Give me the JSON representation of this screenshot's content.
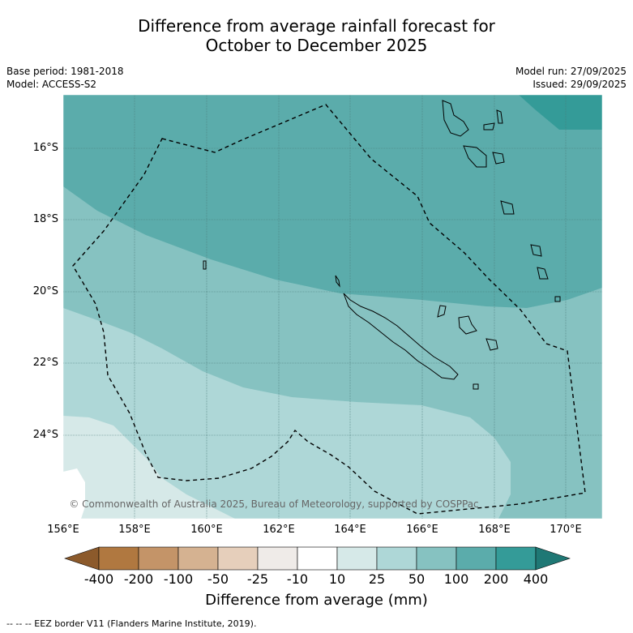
{
  "title_line1": "Difference from average rainfall forecast for",
  "title_line2": "October to December 2025",
  "base_period": "Base period: 1981-2018",
  "model": "Model: ACCESS-S2",
  "model_run": "Model run: 27/09/2025",
  "issued": "Issued: 29/09/2025",
  "lat_labels": [
    "16°S",
    "18°S",
    "20°S",
    "22°S",
    "24°S"
  ],
  "lon_labels": [
    "156°E",
    "158°E",
    "160°E",
    "162°E",
    "164°E",
    "166°E",
    "168°E",
    "170°E"
  ],
  "copyright": "© Commonwealth of Australia 2025, Bureau of Meteorology, supported by COSPPac",
  "colorbar": {
    "labels": [
      "-400",
      "-200",
      "-100",
      "-50",
      "-25",
      "-10",
      "10",
      "25",
      "50",
      "100",
      "200",
      "400"
    ],
    "colors": [
      "#8c5a2b",
      "#b07840",
      "#c49468",
      "#d5b291",
      "#e6cfbb",
      "#efebe8",
      "#ffffff",
      "#d6e9e8",
      "#aed7d7",
      "#86c2c1",
      "#5bacab",
      "#349b98",
      "#1f7875"
    ],
    "title": "Difference from average (mm)"
  },
  "footer": "--  --  -- EEZ border V11 (Flanders Marine Institute, 2019)."
}
